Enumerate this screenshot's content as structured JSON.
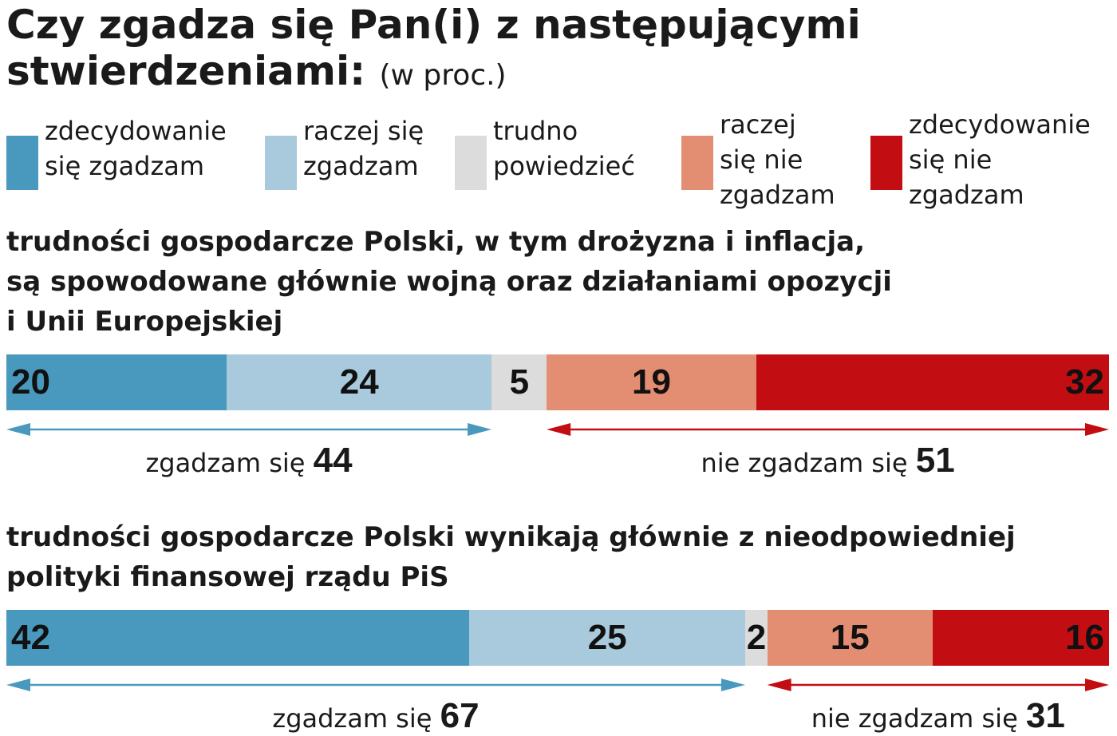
{
  "header": {
    "title_line1": "Czy zgadza się Pan(i) z następującymi",
    "title_line2": "stwierdzeniami:",
    "unit": "(w proc.)"
  },
  "legend": [
    {
      "label": "zdecydowanie\nsię zgadzam",
      "color": "#4999bf"
    },
    {
      "label": "raczej się\nzgadzam",
      "color": "#a8cadc"
    },
    {
      "label": "trudno\npowiedzieć",
      "color": "#dcdcdc"
    },
    {
      "label": "raczej\nsię nie\nzgadzam",
      "color": "#e38e72"
    },
    {
      "label": "zdecydowanie\nsię nie\nzgadzam",
      "color": "#c20e12"
    }
  ],
  "chart_data": [
    {
      "type": "bar",
      "stacked": true,
      "orientation": "horizontal",
      "title": "trudności gospodarcze Polski, w tym drożyzna i inflacja,\nsą spowodowane głównie wojną oraz działaniami opozycji\ni Unii Europejskiej",
      "categories": [
        "zdecydowanie się zgadzam",
        "raczej się zgadzam",
        "trudno powiedzieć",
        "raczej się nie zgadzam",
        "zdecydowanie się nie zgadzam"
      ],
      "values": [
        20,
        24,
        5,
        19,
        32
      ],
      "agree_label": "zgadzam się",
      "agree_total": 44,
      "disagree_label": "nie zgadzam się",
      "disagree_total": 51
    },
    {
      "type": "bar",
      "stacked": true,
      "orientation": "horizontal",
      "title": "trudności gospodarcze Polski wynikają głównie z nieodpowiedniej\npolityki finansowej rządu PiS",
      "categories": [
        "zdecydowanie się zgadzam",
        "raczej się zgadzam",
        "trudno powiedzieć",
        "raczej się nie zgadzam",
        "zdecydowanie się nie zgadzam"
      ],
      "values": [
        42,
        25,
        2,
        15,
        16
      ],
      "agree_label": "zgadzam się",
      "agree_total": 67,
      "disagree_label": "nie zgadzam się",
      "disagree_total": 31
    }
  ],
  "arrow_colors": {
    "agree": "#4999bf",
    "disagree": "#c20e12"
  }
}
